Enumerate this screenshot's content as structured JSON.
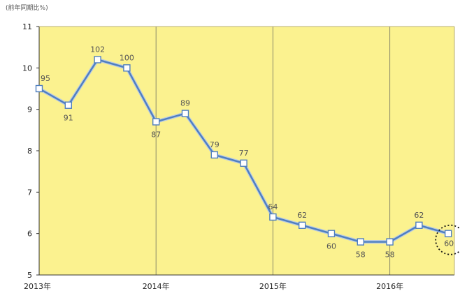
{
  "chart_data": {
    "type": "line",
    "unit_label": "(前年同期比%)",
    "y_ticks": [
      "5",
      "6",
      "7",
      "8",
      "9",
      "10",
      "11"
    ],
    "ylim": [
      5,
      11
    ],
    "x_ticks": [
      "2013年",
      "2014年",
      "2015年",
      "2016年"
    ],
    "x_tick_positions": [
      0,
      4,
      8,
      12
    ],
    "grid": "vertical lines at year boundaries",
    "colors": {
      "plot_background": "#fbf28f",
      "line": "#4f7fbf",
      "marker_fill": "#ffffff",
      "marker_stroke": "#4f7fbf",
      "label": "#555555",
      "highlight_circle": "#111111"
    },
    "points": [
      {
        "x": 0,
        "y": 9.5,
        "label": "95"
      },
      {
        "x": 1,
        "y": 9.1,
        "label": "91"
      },
      {
        "x": 2,
        "y": 10.2,
        "label": "102"
      },
      {
        "x": 3,
        "y": 10.0,
        "label": "100"
      },
      {
        "x": 4,
        "y": 8.7,
        "label": "87"
      },
      {
        "x": 5,
        "y": 8.9,
        "label": "89"
      },
      {
        "x": 6,
        "y": 7.9,
        "label": "79"
      },
      {
        "x": 7,
        "y": 7.7,
        "label": "77"
      },
      {
        "x": 8,
        "y": 6.4,
        "label": "64"
      },
      {
        "x": 9,
        "y": 6.2,
        "label": "62"
      },
      {
        "x": 10,
        "y": 6.0,
        "label": "60"
      },
      {
        "x": 11,
        "y": 5.8,
        "label": "58"
      },
      {
        "x": 12,
        "y": 5.8,
        "label": "58"
      },
      {
        "x": 13,
        "y": 6.2,
        "label": "62"
      },
      {
        "x": 14,
        "y": 6.0,
        "label": "60"
      }
    ],
    "highlighted_point": 14
  }
}
